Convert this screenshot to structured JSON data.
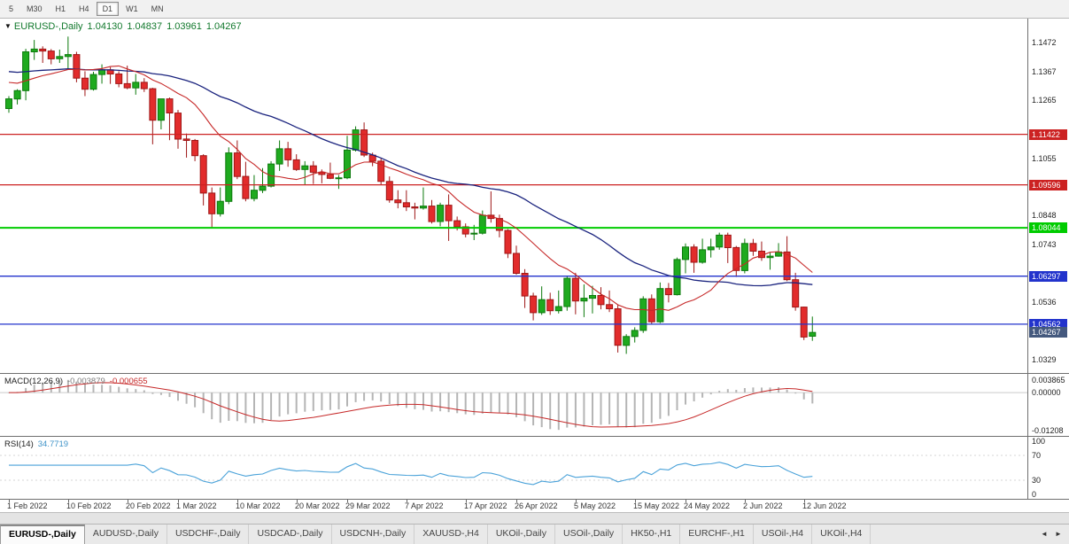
{
  "toolbar": {
    "periods": [
      {
        "label": "5",
        "active": false
      },
      {
        "label": "M30",
        "active": false
      },
      {
        "label": "H1",
        "active": false
      },
      {
        "label": "H4",
        "active": false
      },
      {
        "label": "D1",
        "active": true
      },
      {
        "label": "W1",
        "active": false
      },
      {
        "label": "MN",
        "active": false
      }
    ]
  },
  "chart_header": {
    "expander": "▼",
    "symbol": "EURUSD-,Daily",
    "open": "1.04130",
    "high": "1.04837",
    "low": "1.03961",
    "close": "1.04267"
  },
  "price_axis_ticks": [
    "1.1472",
    "1.1367",
    "1.1265",
    "1.1055",
    "1.0848",
    "1.0743",
    "1.0536",
    "1.0329"
  ],
  "macd_panel": {
    "label": "MACD(12,26,9)",
    "main_value": "-0.003879",
    "signal_value": "-0.000655",
    "axis_ticks": {
      "top": "0.003865",
      "zero": "0.00000",
      "bottom": "-0.01208"
    }
  },
  "rsi_panel": {
    "label": "RSI(14)",
    "value": "34.7719",
    "axis_ticks": [
      "100",
      "70",
      "30",
      "0"
    ]
  },
  "tabs": {
    "items": [
      {
        "label": "EURUSD-,Daily",
        "active": true
      },
      {
        "label": "AUDUSD-,Daily",
        "active": false
      },
      {
        "label": "USDCHF-,Daily",
        "active": false
      },
      {
        "label": "USDCAD-,Daily",
        "active": false
      },
      {
        "label": "USDCNH-,Daily",
        "active": false
      },
      {
        "label": "XAUUSD-,H4",
        "active": false
      },
      {
        "label": "UKOil-,Daily",
        "active": false
      },
      {
        "label": "USOil-,Daily",
        "active": false
      },
      {
        "label": "HK50-,H1",
        "active": false
      },
      {
        "label": "EURCHF-,H1",
        "active": false
      },
      {
        "label": "USOil-,H4",
        "active": false
      },
      {
        "label": "UKOil-,H4",
        "active": false
      }
    ],
    "scroll_left": "◄",
    "scroll_right": "►"
  },
  "colors": {
    "candle_up": "#1faa1f",
    "candle_up_border": "#0c7a0c",
    "candle_down": "#e22c2c",
    "candle_down_border": "#9e1616",
    "ma_fast": "#c62828",
    "ma_slow": "#1a237e",
    "macd_hist": "#b5b5b5",
    "macd_signal": "#c62828",
    "rsi_line": "#4aa2d9",
    "current_flag": "#44597e"
  },
  "chart_data": {
    "type": "candlestick",
    "title": "EURUSD-,Daily",
    "y_range": [
      1.028,
      1.156
    ],
    "x_ticks": [
      {
        "label": "1 Feb 2022",
        "index": 0
      },
      {
        "label": "10 Feb 2022",
        "index": 7
      },
      {
        "label": "20 Feb 2022",
        "index": 14
      },
      {
        "label": "1 Mar 2022",
        "index": 20
      },
      {
        "label": "10 Mar 2022",
        "index": 27
      },
      {
        "label": "20 Mar 2022",
        "index": 34
      },
      {
        "label": "29 Mar 2022",
        "index": 40
      },
      {
        "label": "7 Apr 2022",
        "index": 47
      },
      {
        "label": "17 Apr 2022",
        "index": 54
      },
      {
        "label": "26 Apr 2022",
        "index": 60
      },
      {
        "label": "5 May 2022",
        "index": 67
      },
      {
        "label": "15 May 2022",
        "index": 74
      },
      {
        "label": "24 May 2022",
        "index": 80
      },
      {
        "label": "2 Jun 2022",
        "index": 87
      },
      {
        "label": "12 Jun 2022",
        "index": 94
      }
    ],
    "levels": [
      {
        "price": 1.11422,
        "label": "1.11422",
        "color": "#cc2222",
        "width": 1.3
      },
      {
        "price": 1.09596,
        "label": "1.09596",
        "color": "#cc2222",
        "width": 1.3
      },
      {
        "price": 1.08044,
        "label": "1.08044",
        "color": "#00cc00",
        "width": 2
      },
      {
        "price": 1.06297,
        "label": "1.06297",
        "color": "#2233cc",
        "width": 1.3
      },
      {
        "price": 1.04562,
        "label": "1.04562",
        "color": "#2233cc",
        "width": 1.3
      }
    ],
    "current_price": {
      "price": 1.04267,
      "label": "1.04267"
    },
    "indicators": [
      {
        "name": "MACD",
        "params": [
          12,
          26,
          9
        ],
        "current": [
          -0.003879,
          -0.000655
        ]
      },
      {
        "name": "RSI",
        "params": [
          14
        ],
        "current": 34.7719
      }
    ],
    "candles": [
      [
        1.1235,
        1.128,
        1.122,
        1.127
      ],
      [
        1.127,
        1.1305,
        1.125,
        1.13
      ],
      [
        1.13,
        1.1451,
        1.1265,
        1.144
      ],
      [
        1.144,
        1.1483,
        1.1411,
        1.145
      ],
      [
        1.145,
        1.146,
        1.14,
        1.1443
      ],
      [
        1.1443,
        1.145,
        1.1395,
        1.1415
      ],
      [
        1.1415,
        1.1448,
        1.14,
        1.1423
      ],
      [
        1.1423,
        1.1495,
        1.1375,
        1.143
      ],
      [
        1.143,
        1.144,
        1.133,
        1.1345
      ],
      [
        1.1345,
        1.137,
        1.128,
        1.1305
      ],
      [
        1.1305,
        1.1368,
        1.13,
        1.1358
      ],
      [
        1.1358,
        1.1395,
        1.1325,
        1.1375
      ],
      [
        1.1375,
        1.1385,
        1.1324,
        1.136
      ],
      [
        1.136,
        1.137,
        1.1312,
        1.1325
      ],
      [
        1.1325,
        1.139,
        1.1305,
        1.131
      ],
      [
        1.131,
        1.136,
        1.1285,
        1.133
      ],
      [
        1.133,
        1.1345,
        1.1295,
        1.1307
      ],
      [
        1.1307,
        1.131,
        1.1106,
        1.1193
      ],
      [
        1.1193,
        1.127,
        1.116,
        1.127
      ],
      [
        1.127,
        1.1275,
        1.1121,
        1.1219
      ],
      [
        1.1219,
        1.123,
        1.109,
        1.1125
      ],
      [
        1.1125,
        1.1145,
        1.1058,
        1.112
      ],
      [
        1.112,
        1.1125,
        1.1045,
        1.1065
      ],
      [
        1.1065,
        1.107,
        1.0885,
        1.093
      ],
      [
        1.093,
        1.095,
        1.0806,
        1.0855
      ],
      [
        1.0855,
        1.095,
        1.0845,
        1.09
      ],
      [
        1.09,
        1.1095,
        1.089,
        1.1075
      ],
      [
        1.1075,
        1.112,
        1.098,
        1.099
      ],
      [
        1.099,
        1.1043,
        1.09,
        1.091
      ],
      [
        1.091,
        1.0995,
        1.09,
        1.094
      ],
      [
        1.094,
        1.102,
        1.093,
        1.0955
      ],
      [
        1.0955,
        1.1045,
        1.095,
        1.1035
      ],
      [
        1.1035,
        1.112,
        1.101,
        1.109
      ],
      [
        1.109,
        1.1115,
        1.1025,
        1.105
      ],
      [
        1.105,
        1.107,
        1.101,
        1.1015
      ],
      [
        1.1015,
        1.1045,
        1.096,
        1.1028
      ],
      [
        1.1028,
        1.1045,
        1.0963,
        1.1005
      ],
      [
        1.1005,
        1.1015,
        1.0965,
        1.0997
      ],
      [
        1.0997,
        1.104,
        1.098,
        1.0983
      ],
      [
        1.0983,
        1.0995,
        1.0945,
        1.0985
      ],
      [
        1.0985,
        1.1137,
        1.098,
        1.1085
      ],
      [
        1.1085,
        1.1171,
        1.108,
        1.1158
      ],
      [
        1.1158,
        1.1185,
        1.106,
        1.1067
      ],
      [
        1.1067,
        1.1076,
        1.1027,
        1.1045
      ],
      [
        1.1045,
        1.1055,
        1.096,
        1.0972
      ],
      [
        1.0972,
        1.099,
        1.0895,
        1.0905
      ],
      [
        1.0905,
        1.094,
        1.0875,
        1.0895
      ],
      [
        1.0895,
        1.094,
        1.0865,
        1.088
      ],
      [
        1.088,
        1.0895,
        1.0835,
        1.0876
      ],
      [
        1.0876,
        1.095,
        1.087,
        1.0883
      ],
      [
        1.0883,
        1.0905,
        1.082,
        1.0827
      ],
      [
        1.0827,
        1.0895,
        1.081,
        1.0886
      ],
      [
        1.0886,
        1.0925,
        1.0757,
        1.083
      ],
      [
        1.083,
        1.0845,
        1.0795,
        1.0808
      ],
      [
        1.0808,
        1.082,
        1.077,
        1.0782
      ],
      [
        1.0782,
        1.0815,
        1.076,
        1.0785
      ],
      [
        1.0785,
        1.0867,
        1.078,
        1.085
      ],
      [
        1.085,
        1.0936,
        1.0823,
        1.0838
      ],
      [
        1.0838,
        1.0852,
        1.077,
        1.0795
      ],
      [
        1.0795,
        1.08,
        1.0695,
        1.0712
      ],
      [
        1.0712,
        1.074,
        1.0635,
        1.064
      ],
      [
        1.064,
        1.0655,
        1.0515,
        1.0558
      ],
      [
        1.0558,
        1.057,
        1.047,
        1.0498
      ],
      [
        1.0498,
        1.0593,
        1.049,
        1.0545
      ],
      [
        1.0545,
        1.057,
        1.049,
        1.0505
      ],
      [
        1.0505,
        1.0578,
        1.0495,
        1.052
      ],
      [
        1.052,
        1.063,
        1.0505,
        1.0622
      ],
      [
        1.0622,
        1.0642,
        1.0492,
        1.054
      ],
      [
        1.054,
        1.06,
        1.0482,
        1.055
      ],
      [
        1.055,
        1.0595,
        1.0495,
        1.056
      ],
      [
        1.056,
        1.059,
        1.051,
        1.0527
      ],
      [
        1.0527,
        1.0578,
        1.05,
        1.0512
      ],
      [
        1.0512,
        1.0525,
        1.0354,
        1.038
      ],
      [
        1.038,
        1.042,
        1.0349,
        1.0412
      ],
      [
        1.0412,
        1.0445,
        1.039,
        1.0434
      ],
      [
        1.0434,
        1.0557,
        1.0425,
        1.0548
      ],
      [
        1.0548,
        1.0564,
        1.0455,
        1.0465
      ],
      [
        1.0465,
        1.0607,
        1.046,
        1.0585
      ],
      [
        1.0585,
        1.0605,
        1.0535,
        1.0563
      ],
      [
        1.0563,
        1.0697,
        1.056,
        1.069
      ],
      [
        1.069,
        1.0748,
        1.064,
        1.0735
      ],
      [
        1.0735,
        1.0745,
        1.0642,
        1.068
      ],
      [
        1.068,
        1.0765,
        1.0675,
        1.0725
      ],
      [
        1.0725,
        1.0765,
        1.0697,
        1.0735
      ],
      [
        1.0735,
        1.0787,
        1.0725,
        1.0778
      ],
      [
        1.0778,
        1.0787,
        1.0677,
        1.0733
      ],
      [
        1.0733,
        1.0739,
        1.0627,
        1.065
      ],
      [
        1.065,
        1.0765,
        1.064,
        1.0748
      ],
      [
        1.0748,
        1.0764,
        1.0703,
        1.072
      ],
      [
        1.072,
        1.0755,
        1.0685,
        1.0697
      ],
      [
        1.0697,
        1.0715,
        1.0653,
        1.0702
      ],
      [
        1.0702,
        1.0749,
        1.07,
        1.0717
      ],
      [
        1.0717,
        1.0774,
        1.0612,
        1.0617
      ],
      [
        1.0617,
        1.0642,
        1.0505,
        1.0518
      ],
      [
        1.0518,
        1.052,
        1.0399,
        1.041
      ],
      [
        1.0413,
        1.04837,
        1.03961,
        1.04267
      ]
    ]
  }
}
